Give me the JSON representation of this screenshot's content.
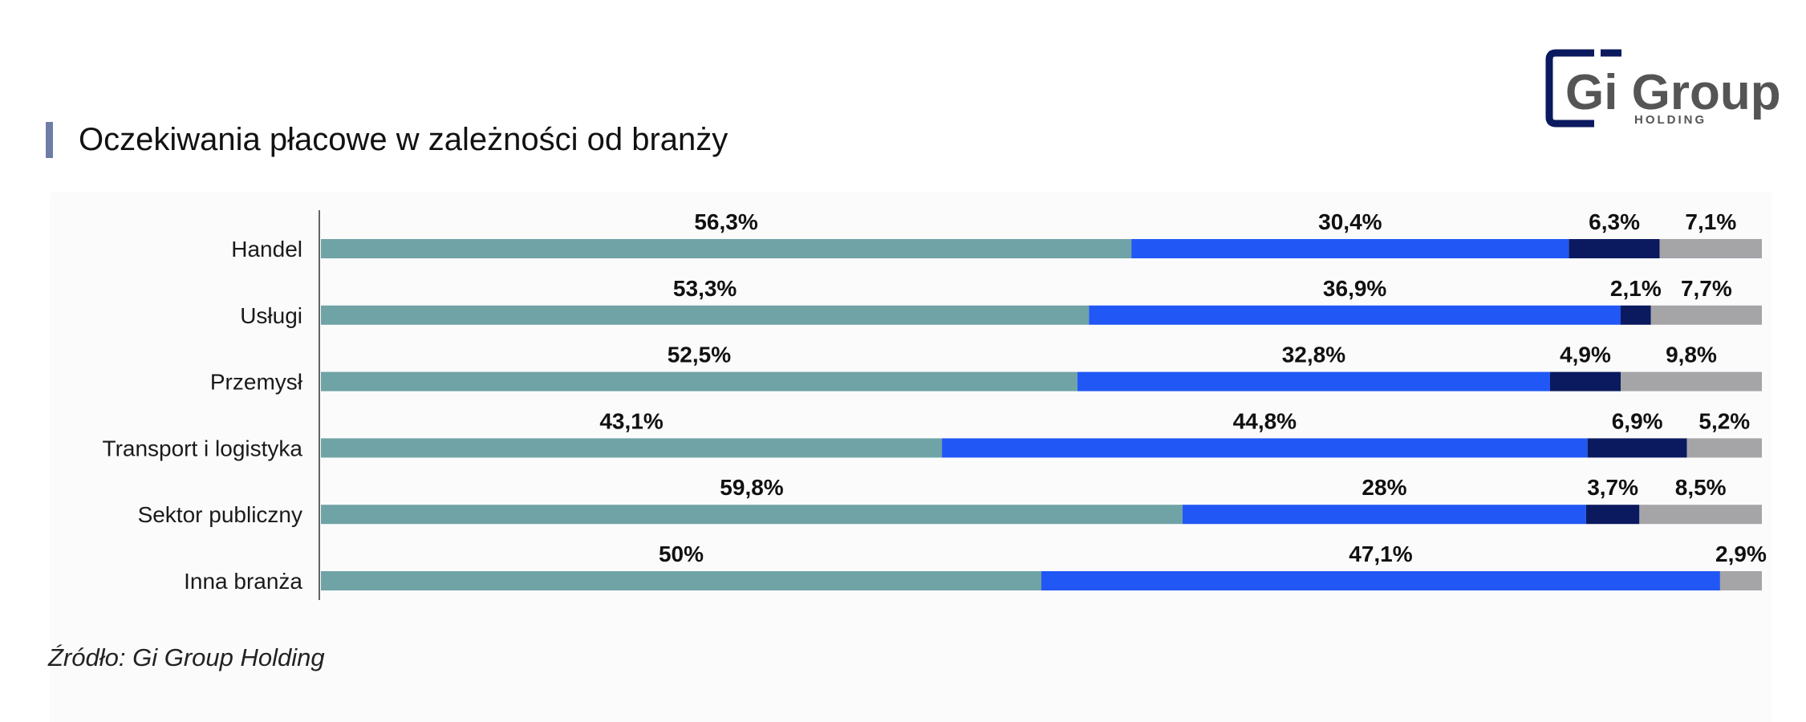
{
  "header": {
    "title": "Oczekiwania płacowe w zależności od branży"
  },
  "logo": {
    "main_text": "Gi Group",
    "sub_text": "HOLDING"
  },
  "footer": {
    "source": "Źródło: Gi Group Holding"
  },
  "colors": {
    "series": [
      "#6fa3a6",
      "#2157f5",
      "#0b1a5e",
      "#a5a5a8"
    ],
    "title_accent": "#6d7da6",
    "logo_dark": "#0b1a5e",
    "logo_gray": "#555555"
  },
  "chart_data": {
    "type": "bar",
    "orientation": "horizontal",
    "stacked": "100%",
    "title": "Oczekiwania płacowe w zależności od branży",
    "xlabel": "",
    "ylabel": "",
    "legend": "none",
    "grid": false,
    "categories": [
      "Handel",
      "Usługi",
      "Przemysł",
      "Transport i logistyka",
      "Sektor publiczny",
      "Inna branża"
    ],
    "series": [
      {
        "values": [
          56.3,
          53.3,
          52.5,
          43.1,
          59.8,
          50
        ],
        "labels": [
          "56,3%",
          "53,3%",
          "52,5%",
          "43,1%",
          "59,8%",
          "50%"
        ]
      },
      {
        "values": [
          30.4,
          36.9,
          32.8,
          44.8,
          28,
          47.1
        ],
        "labels": [
          "30,4%",
          "36,9%",
          "32,8%",
          "44,8%",
          "28%",
          "47,1%"
        ]
      },
      {
        "values": [
          6.3,
          2.1,
          4.9,
          6.9,
          3.7,
          0
        ],
        "labels": [
          "6,3%",
          "2,1%",
          "4,9%",
          "6,9%",
          "3,7%",
          ""
        ]
      },
      {
        "values": [
          7.1,
          7.7,
          9.8,
          5.2,
          8.5,
          2.9
        ],
        "labels": [
          "7,1%",
          "7,7%",
          "9,8%",
          "5,2%",
          "8,5%",
          "2,9%"
        ]
      }
    ]
  }
}
